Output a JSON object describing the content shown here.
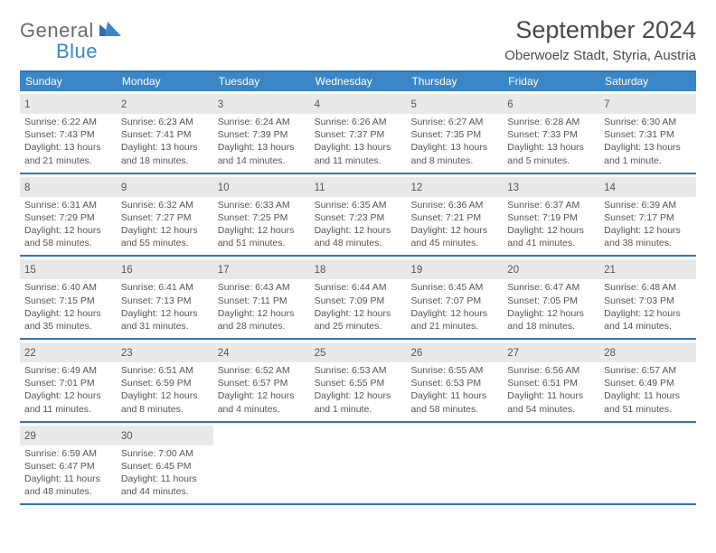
{
  "brand": {
    "word1": "General",
    "word2": "Blue"
  },
  "title": "September 2024",
  "subtitle": "Oberwoelz Stadt, Styria, Austria",
  "colors": {
    "header_bg": "#3b86c6",
    "border": "#2f77b6",
    "daynum_bg": "#e9e9e9",
    "text": "#4a4a4a"
  },
  "weekdays": [
    "Sunday",
    "Monday",
    "Tuesday",
    "Wednesday",
    "Thursday",
    "Friday",
    "Saturday"
  ],
  "weeks": [
    [
      {
        "n": "1",
        "sr": "6:22 AM",
        "ss": "7:43 PM",
        "dl": "13 hours and 21 minutes."
      },
      {
        "n": "2",
        "sr": "6:23 AM",
        "ss": "7:41 PM",
        "dl": "13 hours and 18 minutes."
      },
      {
        "n": "3",
        "sr": "6:24 AM",
        "ss": "7:39 PM",
        "dl": "13 hours and 14 minutes."
      },
      {
        "n": "4",
        "sr": "6:26 AM",
        "ss": "7:37 PM",
        "dl": "13 hours and 11 minutes."
      },
      {
        "n": "5",
        "sr": "6:27 AM",
        "ss": "7:35 PM",
        "dl": "13 hours and 8 minutes."
      },
      {
        "n": "6",
        "sr": "6:28 AM",
        "ss": "7:33 PM",
        "dl": "13 hours and 5 minutes."
      },
      {
        "n": "7",
        "sr": "6:30 AM",
        "ss": "7:31 PM",
        "dl": "13 hours and 1 minute."
      }
    ],
    [
      {
        "n": "8",
        "sr": "6:31 AM",
        "ss": "7:29 PM",
        "dl": "12 hours and 58 minutes."
      },
      {
        "n": "9",
        "sr": "6:32 AM",
        "ss": "7:27 PM",
        "dl": "12 hours and 55 minutes."
      },
      {
        "n": "10",
        "sr": "6:33 AM",
        "ss": "7:25 PM",
        "dl": "12 hours and 51 minutes."
      },
      {
        "n": "11",
        "sr": "6:35 AM",
        "ss": "7:23 PM",
        "dl": "12 hours and 48 minutes."
      },
      {
        "n": "12",
        "sr": "6:36 AM",
        "ss": "7:21 PM",
        "dl": "12 hours and 45 minutes."
      },
      {
        "n": "13",
        "sr": "6:37 AM",
        "ss": "7:19 PM",
        "dl": "12 hours and 41 minutes."
      },
      {
        "n": "14",
        "sr": "6:39 AM",
        "ss": "7:17 PM",
        "dl": "12 hours and 38 minutes."
      }
    ],
    [
      {
        "n": "15",
        "sr": "6:40 AM",
        "ss": "7:15 PM",
        "dl": "12 hours and 35 minutes."
      },
      {
        "n": "16",
        "sr": "6:41 AM",
        "ss": "7:13 PM",
        "dl": "12 hours and 31 minutes."
      },
      {
        "n": "17",
        "sr": "6:43 AM",
        "ss": "7:11 PM",
        "dl": "12 hours and 28 minutes."
      },
      {
        "n": "18",
        "sr": "6:44 AM",
        "ss": "7:09 PM",
        "dl": "12 hours and 25 minutes."
      },
      {
        "n": "19",
        "sr": "6:45 AM",
        "ss": "7:07 PM",
        "dl": "12 hours and 21 minutes."
      },
      {
        "n": "20",
        "sr": "6:47 AM",
        "ss": "7:05 PM",
        "dl": "12 hours and 18 minutes."
      },
      {
        "n": "21",
        "sr": "6:48 AM",
        "ss": "7:03 PM",
        "dl": "12 hours and 14 minutes."
      }
    ],
    [
      {
        "n": "22",
        "sr": "6:49 AM",
        "ss": "7:01 PM",
        "dl": "12 hours and 11 minutes."
      },
      {
        "n": "23",
        "sr": "6:51 AM",
        "ss": "6:59 PM",
        "dl": "12 hours and 8 minutes."
      },
      {
        "n": "24",
        "sr": "6:52 AM",
        "ss": "6:57 PM",
        "dl": "12 hours and 4 minutes."
      },
      {
        "n": "25",
        "sr": "6:53 AM",
        "ss": "6:55 PM",
        "dl": "12 hours and 1 minute."
      },
      {
        "n": "26",
        "sr": "6:55 AM",
        "ss": "6:53 PM",
        "dl": "11 hours and 58 minutes."
      },
      {
        "n": "27",
        "sr": "6:56 AM",
        "ss": "6:51 PM",
        "dl": "11 hours and 54 minutes."
      },
      {
        "n": "28",
        "sr": "6:57 AM",
        "ss": "6:49 PM",
        "dl": "11 hours and 51 minutes."
      }
    ],
    [
      {
        "n": "29",
        "sr": "6:59 AM",
        "ss": "6:47 PM",
        "dl": "11 hours and 48 minutes."
      },
      {
        "n": "30",
        "sr": "7:00 AM",
        "ss": "6:45 PM",
        "dl": "11 hours and 44 minutes."
      },
      null,
      null,
      null,
      null,
      null
    ]
  ],
  "labels": {
    "sunrise": "Sunrise: ",
    "sunset": "Sunset: ",
    "daylight": "Daylight: "
  }
}
